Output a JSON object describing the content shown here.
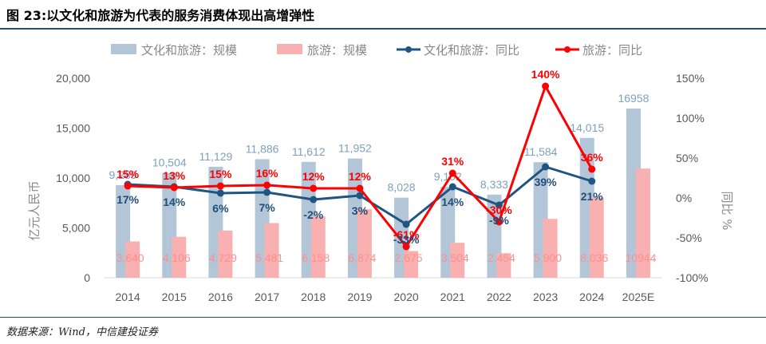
{
  "title": "图 23:以文化和旅游为代表的服务消费体现出高增弹性",
  "source": "数据来源：Wind，中信建投证券",
  "colors": {
    "bar_culture": "#b3c6d7",
    "bar_tourism": "#f8b0b0",
    "line_culture": "#1f5582",
    "line_tourism": "#ff0000",
    "label_culture_bar": "#7f9fbd",
    "label_tourism_bar": "#ff8f8f",
    "label_culture_line": "#1f4e79",
    "label_tourism_line": "#ff0000"
  },
  "chart_data": {
    "type": "bar",
    "categories": [
      "2014",
      "2015",
      "2016",
      "2017",
      "2018",
      "2019",
      "2020",
      "2021",
      "2022",
      "2023",
      "2024",
      "2025E"
    ],
    "series": [
      {
        "name": "文化和旅游：规模",
        "axis": "left",
        "kind": "bar",
        "values": [
          9289,
          10504,
          11129,
          11886,
          11612,
          11952,
          8028,
          9102,
          8333,
          11584,
          14015,
          16958
        ],
        "labels": [
          "9,289",
          "10,504",
          "11,129",
          "11,886",
          "11,612",
          "11,952",
          "8,028",
          "9,102",
          "8,333",
          "11,584",
          "14,015",
          "16958"
        ]
      },
      {
        "name": "旅游：规模",
        "axis": "left",
        "kind": "bar",
        "values": [
          3640,
          4106,
          4729,
          5481,
          6158,
          6874,
          2675,
          3504,
          2454,
          5900,
          8036,
          10944
        ],
        "labels": [
          "3,640",
          "4,106",
          "4,729",
          "5,481",
          "6,158",
          "6,874",
          "2,675",
          "3,504",
          "2,454",
          "5,900",
          "8,036",
          "10944"
        ]
      },
      {
        "name": "文化和旅游：同比",
        "axis": "right",
        "kind": "line",
        "values": [
          17,
          14,
          6,
          7,
          -2,
          3,
          -33,
          14,
          -9,
          39,
          21,
          null
        ],
        "labels": [
          "17%",
          "14%",
          "6%",
          "7%",
          "-2%",
          "3%",
          "-33%",
          "14%",
          "-9%",
          "39%",
          "21%",
          ""
        ]
      },
      {
        "name": "旅游：同比",
        "axis": "right",
        "kind": "line",
        "values": [
          15,
          13,
          15,
          16,
          12,
          12,
          -61,
          31,
          -30,
          140,
          36,
          null
        ],
        "labels": [
          "15%",
          "13%",
          "15%",
          "16%",
          "12%",
          "12%",
          "-61%",
          "31%",
          "-30%",
          "140%",
          "36%",
          ""
        ]
      }
    ],
    "y_left": {
      "label": "亿元人民币",
      "range": [
        0,
        20000
      ],
      "ticks": [
        0,
        5000,
        10000,
        15000,
        20000
      ],
      "tick_labels": [
        "0",
        "5,000",
        "10,000",
        "15,000",
        "20,000"
      ]
    },
    "y_right": {
      "label": "同比 %",
      "range": [
        -100,
        150
      ],
      "ticks": [
        -100,
        -50,
        0,
        50,
        100,
        150
      ],
      "tick_labels": [
        "-100%",
        "-50%",
        "0%",
        "50%",
        "100%",
        "150%"
      ]
    },
    "legend_position": "top",
    "grid": false
  }
}
